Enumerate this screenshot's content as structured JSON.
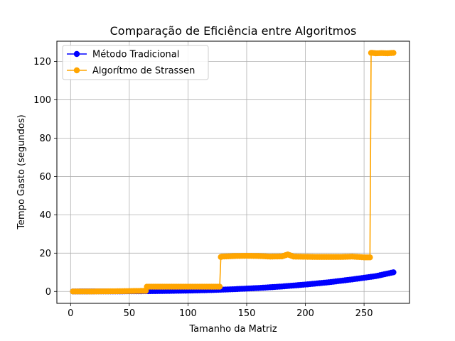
{
  "chart_data": {
    "type": "line",
    "title": "Comparação de Eficiência entre Algoritmos",
    "xlabel": "Tamanho da Matriz",
    "ylabel": "Tempo Gasto (segundos)",
    "xlim": [
      -11.7,
      288.7
    ],
    "ylim": [
      -6.2,
      130.6
    ],
    "xticks": [
      0,
      50,
      100,
      150,
      200,
      250
    ],
    "yticks": [
      0,
      20,
      40,
      60,
      80,
      100,
      120
    ],
    "grid": true,
    "legend_position": "top-left",
    "series": [
      {
        "name": "Método Tradicional",
        "color": "#0000ff",
        "x": [
          2,
          20,
          40,
          60,
          80,
          100,
          120,
          140,
          160,
          180,
          200,
          220,
          240,
          260,
          275
        ],
        "y": [
          0.0,
          0.02,
          0.05,
          0.1,
          0.25,
          0.45,
          0.75,
          1.2,
          1.8,
          2.6,
          3.6,
          4.8,
          6.3,
          8.0,
          10.0
        ]
      },
      {
        "name": "Algorítmo de Strassen",
        "color": "#ffa500",
        "x": [
          2,
          20,
          40,
          60,
          64,
          65,
          80,
          100,
          120,
          127,
          128,
          129,
          140,
          150,
          160,
          170,
          180,
          185,
          190,
          200,
          210,
          220,
          230,
          240,
          250,
          255,
          256,
          257,
          260,
          265,
          270,
          275
        ],
        "y": [
          0.0,
          0.0,
          0.1,
          0.3,
          0.3,
          2.5,
          2.5,
          2.5,
          2.5,
          2.5,
          18.0,
          18.2,
          18.5,
          18.6,
          18.5,
          18.2,
          18.3,
          19.3,
          18.2,
          18.1,
          18.0,
          18.0,
          18.0,
          18.2,
          17.8,
          17.8,
          124.5,
          124.5,
          124.3,
          124.4,
          124.3,
          124.5
        ]
      }
    ]
  }
}
